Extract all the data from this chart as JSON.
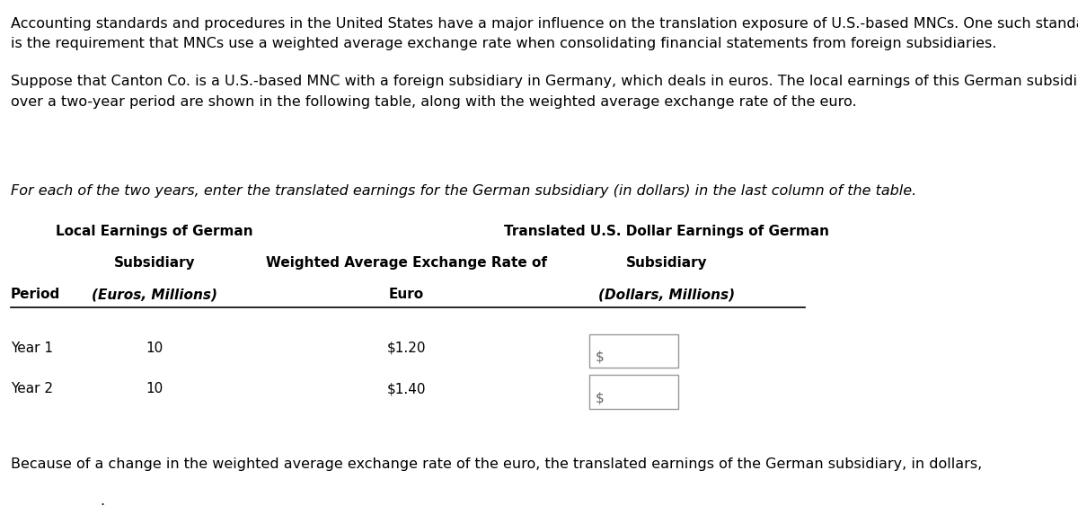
{
  "para1": "Accounting standards and procedures in the United States have a major influence on the translation exposure of U.S.-based MNCs. One such standard\nis the requirement that MNCs use a weighted average exchange rate when consolidating financial statements from foreign subsidiaries.",
  "para2": "Suppose that Canton Co. is a U.S.-based MNC with a foreign subsidiary in Germany, which deals in euros. The local earnings of this German subsidiary\nover a two-year period are shown in the following table, along with the weighted average exchange rate of the euro.",
  "italic_instruction": "For each of the two years, enter the translated earnings for the German subsidiary (in dollars) in the last column of the table.",
  "col_header1_line1": "Local Earnings of German",
  "col_header1_line2": "Subsidiary",
  "col_header1_line3": "(Euros, Millions)",
  "col_header2_line1": "Weighted Average Exchange Rate of",
  "col_header2_line2": "Euro",
  "col_header3_line1": "Translated U.S. Dollar Earnings of German",
  "col_header3_line2": "Subsidiary",
  "col_header3_line3": "(Dollars, Millions)",
  "period_label": "Period",
  "rows": [
    {
      "period": "Year 1",
      "local_earnings": "10",
      "exchange_rate": "$1.20"
    },
    {
      "period": "Year 2",
      "local_earnings": "10",
      "exchange_rate": "$1.40"
    }
  ],
  "footer_text": "Because of a change in the weighted average exchange rate of the euro, the translated earnings of the German subsidiary, in dollars,",
  "bg_color": "#ffffff",
  "text_color": "#000000",
  "font_size_body": 11.5,
  "font_size_table": 11.0,
  "dropdown_line_color": "#4a90d9",
  "dropdown_arrow_color": "#4a90d9"
}
